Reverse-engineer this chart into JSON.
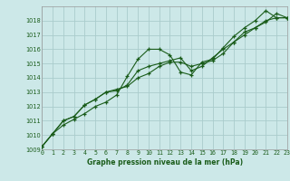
{
  "title": "Graphe pression niveau de la mer (hPa)",
  "bg_color": "#cce8e8",
  "grid_color": "#aacccc",
  "line_color": "#1a5c1a",
  "xlim": [
    0,
    23
  ],
  "ylim": [
    1009,
    1019
  ],
  "xticks": [
    0,
    1,
    2,
    3,
    4,
    5,
    6,
    7,
    8,
    9,
    10,
    11,
    12,
    13,
    14,
    15,
    16,
    17,
    18,
    19,
    20,
    21,
    22,
    23
  ],
  "yticks": [
    1009,
    1010,
    1011,
    1012,
    1013,
    1014,
    1015,
    1016,
    1017,
    1018
  ],
  "line1_x": [
    0,
    1,
    2,
    3,
    4,
    5,
    6,
    7,
    8,
    9,
    10,
    11,
    12,
    13,
    14,
    15,
    16,
    17,
    18,
    19,
    20,
    21,
    22,
    23
  ],
  "line1_y": [
    1009.2,
    1010.1,
    1010.7,
    1011.1,
    1011.5,
    1012.0,
    1012.3,
    1012.8,
    1014.1,
    1015.3,
    1016.0,
    1016.0,
    1015.6,
    1014.4,
    1014.2,
    1015.1,
    1015.3,
    1016.1,
    1016.9,
    1017.5,
    1018.0,
    1018.7,
    1018.2,
    1018.2
  ],
  "line2_x": [
    0,
    1,
    2,
    3,
    4,
    5,
    6,
    7,
    8,
    9,
    10,
    11,
    12,
    13,
    14,
    15,
    16,
    17,
    18,
    19,
    20,
    21,
    22,
    23
  ],
  "line2_y": [
    1009.2,
    1010.1,
    1011.0,
    1011.3,
    1012.1,
    1012.5,
    1013.0,
    1013.2,
    1013.4,
    1014.0,
    1014.3,
    1014.8,
    1015.1,
    1015.1,
    1014.8,
    1015.0,
    1015.2,
    1015.7,
    1016.5,
    1017.2,
    1017.5,
    1018.0,
    1018.2,
    1018.2
  ],
  "line3_x": [
    0,
    1,
    2,
    3,
    4,
    5,
    6,
    7,
    8,
    9,
    10,
    11,
    12,
    13,
    14,
    15,
    16,
    17,
    18,
    19,
    20,
    21,
    22,
    23
  ],
  "line3_y": [
    1009.2,
    1010.1,
    1011.0,
    1011.3,
    1012.1,
    1012.5,
    1013.0,
    1013.1,
    1013.5,
    1014.5,
    1014.8,
    1015.0,
    1015.2,
    1015.4,
    1014.5,
    1014.8,
    1015.4,
    1016.0,
    1016.5,
    1017.0,
    1017.5,
    1017.9,
    1018.5,
    1018.2
  ],
  "xlabel_fontsize": 5.5,
  "ylabel_fontsize": 5.0,
  "tick_labelsize": 4.8
}
